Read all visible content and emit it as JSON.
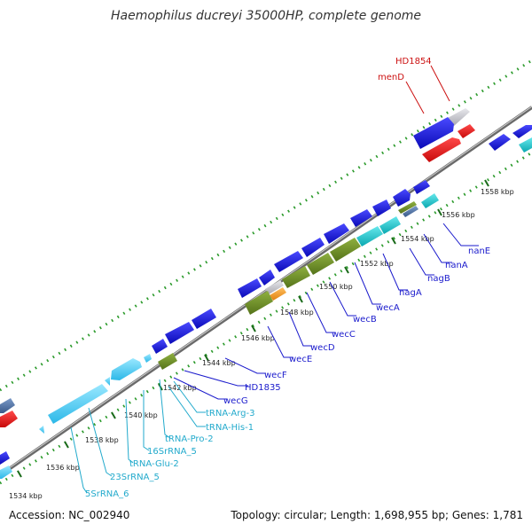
{
  "title": "Haemophilus ducreyi 35000HP, complete genome",
  "accession": "Accession: NC_002940",
  "topology": "Topology: circular; Length: 1,698,955 bp; Genes: 1,781",
  "colors": {
    "forward_cds": "#1010d8",
    "reverse_cds": "#ee1111",
    "rna": "#44ccee",
    "olive": "#6b8e23",
    "teal": "#11c6cc",
    "grey": "#c8c8cc",
    "orange": "#f0a030",
    "backbone": "#8c8c8c",
    "dots": "#2b9a2b",
    "label_blue": "#1a1acc",
    "label_red": "#cc1111",
    "label_cyan": "#22aacc"
  },
  "ticks": [
    "1534 kbp",
    "1536 kbp",
    "1538 kbp",
    "1540 kbp",
    "1542 kbp",
    "1544 kbp",
    "1546 kbp",
    "1548 kbp",
    "1550 kbp",
    "1552 kbp",
    "1554 kbp",
    "1556 kbp",
    "1558 kbp"
  ],
  "labels": {
    "HD1854": "HD1854",
    "menD": "menD",
    "nanE": "nanE",
    "nanA": "nanA",
    "nagB": "nagB",
    "nagA": "nagA",
    "wecA": "wecA",
    "wecB": "wecB",
    "wecC": "wecC",
    "wecD": "wecD",
    "wecE": "wecE",
    "wecF": "wecF",
    "HD1835": "HD1835",
    "wecG": "wecG",
    "tRNA_Arg_3": "tRNA-Arg-3",
    "tRNA_His_1": "tRNA-His-1",
    "tRNA_Pro_2": "tRNA-Pro-2",
    "16SrRNA_5": "16SrRNA_5",
    "tRNA_Glu_2": "tRNA-Glu-2",
    "23SrRNA_5": "23SrRNA_5",
    "5SrRNA_6": "5SrRNA_6"
  }
}
